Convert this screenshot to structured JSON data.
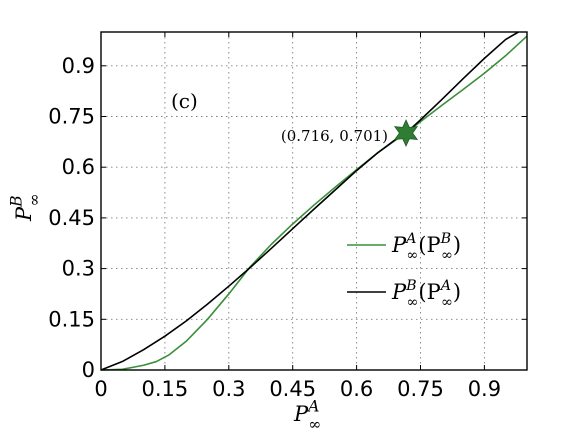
{
  "chart_data": {
    "type": "line",
    "panel_label": "(c)",
    "xlabel": "P_∞^A",
    "ylabel": "P_∞^B",
    "xlim": [
      0,
      1
    ],
    "ylim": [
      0,
      1
    ],
    "xticks": [
      "0",
      "0.15",
      "0.3",
      "0.45",
      "0.6",
      "0.75",
      "0.9"
    ],
    "yticks": [
      "0",
      "0.15",
      "0.3",
      "0.45",
      "0.6",
      "0.75",
      "0.9"
    ],
    "grid": true,
    "legend_position": "lower-right",
    "series": [
      {
        "name": "P_∞^A(P_∞^B)",
        "color": "#3a8f3a",
        "x": [
          0.0,
          0.05,
          0.1,
          0.13,
          0.16,
          0.2,
          0.25,
          0.3,
          0.35,
          0.4,
          0.45,
          0.5,
          0.55,
          0.6,
          0.65,
          0.7,
          0.716,
          0.75,
          0.8,
          0.85,
          0.9,
          0.95,
          1.0
        ],
        "y": [
          0.0,
          0.002,
          0.014,
          0.025,
          0.045,
          0.085,
          0.15,
          0.225,
          0.305,
          0.372,
          0.432,
          0.488,
          0.541,
          0.593,
          0.643,
          0.688,
          0.701,
          0.735,
          0.783,
          0.83,
          0.878,
          0.93,
          0.988
        ]
      },
      {
        "name": "P_∞^B(P_∞^A)",
        "color": "#000000",
        "x": [
          0.0,
          0.05,
          0.1,
          0.15,
          0.2,
          0.25,
          0.3,
          0.35,
          0.4,
          0.45,
          0.5,
          0.55,
          0.6,
          0.65,
          0.7,
          0.716,
          0.75,
          0.8,
          0.85,
          0.9,
          0.95,
          0.98
        ],
        "y": [
          0.0,
          0.025,
          0.06,
          0.1,
          0.145,
          0.195,
          0.248,
          0.303,
          0.36,
          0.418,
          0.476,
          0.533,
          0.59,
          0.643,
          0.69,
          0.701,
          0.74,
          0.8,
          0.862,
          0.922,
          0.978,
          1.0
        ]
      }
    ],
    "annotations": [
      {
        "text": "(0.716, 0.701)",
        "x": 0.716,
        "y": 0.701,
        "marker": "star",
        "marker_color": "#2e7d32"
      }
    ]
  }
}
